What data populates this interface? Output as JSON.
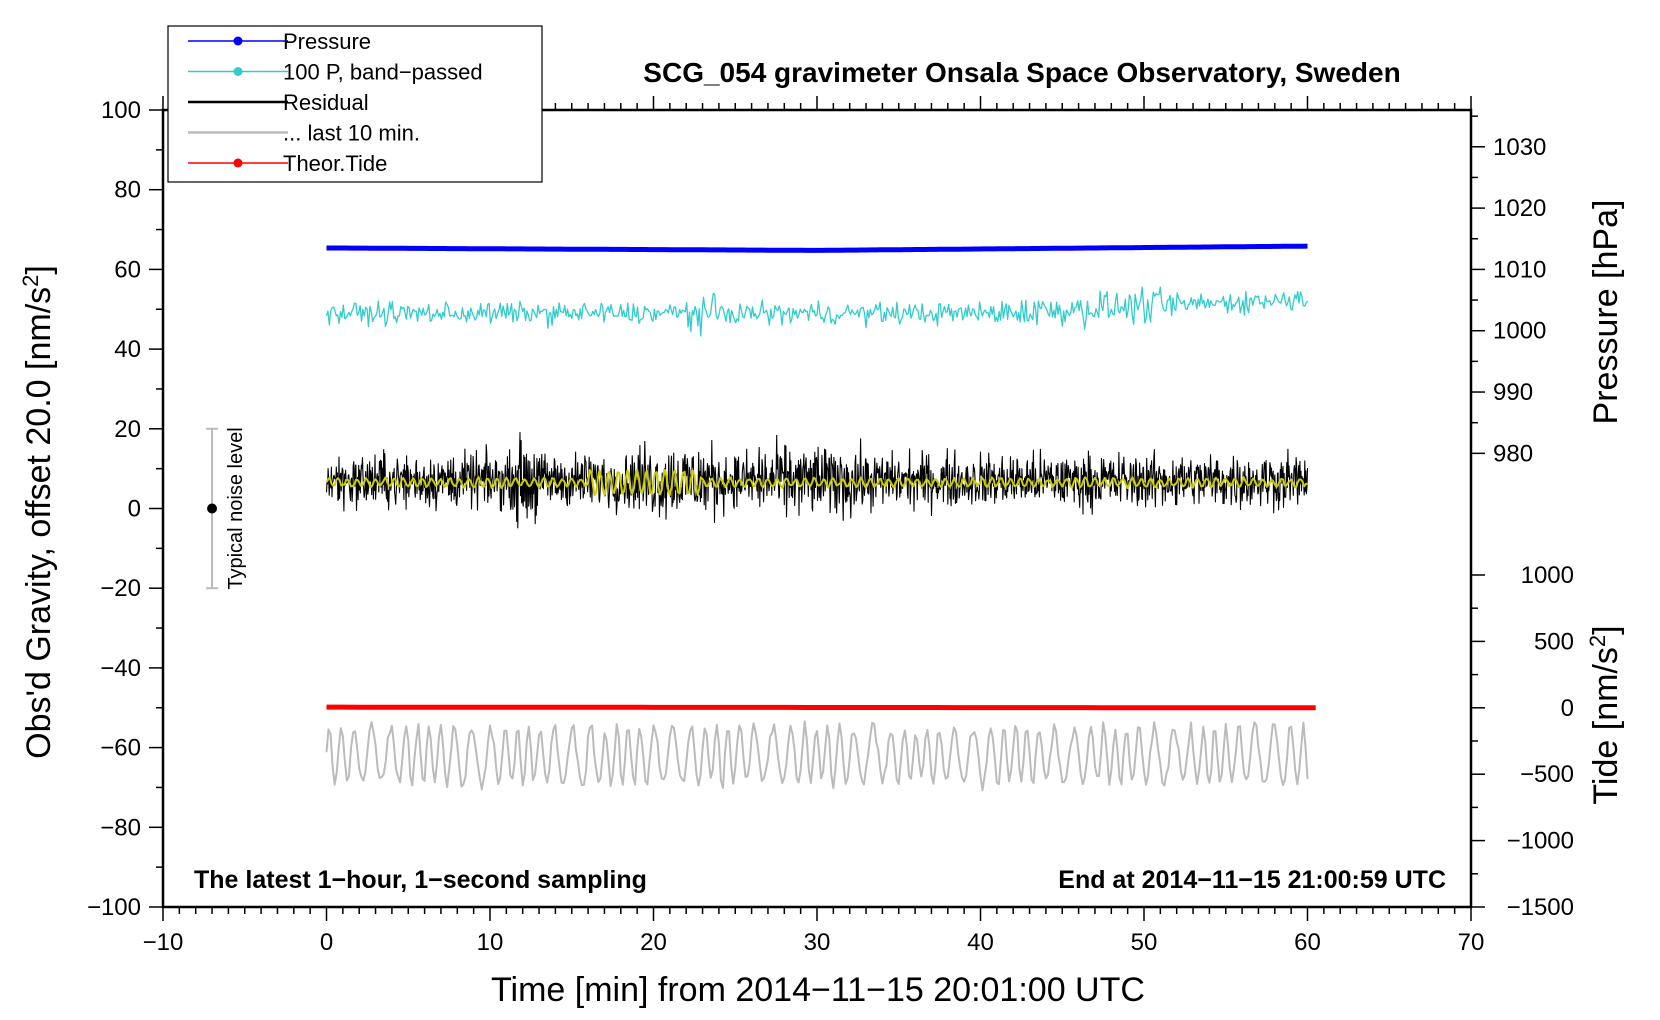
{
  "chart_data": {
    "type": "line",
    "title": "SCG_054 gravimeter Onsala Space Observatory, Sweden",
    "xlabel": "Time [min] from 2014−11−15 20:01:00 UTC",
    "ylabel_left": "Obs'd Gravity, offset 20.0 [nm/s",
    "ylabel_left_sup": "2",
    "ylabel_left_close": "]",
    "ylabel_right_pressure": "Pressure [hPa]",
    "ylabel_right_tide": "Tide [nm/s",
    "ylabel_right_tide_sup": "2",
    "ylabel_right_tide_close": "]",
    "xlim": [
      -10,
      70
    ],
    "ylim_left": [
      -100,
      100
    ],
    "x_ticks": [
      "−10",
      "0",
      "10",
      "20",
      "30",
      "40",
      "50",
      "60",
      "70"
    ],
    "y_left_ticks": [
      "100",
      "80",
      "60",
      "40",
      "20",
      "0",
      "−20",
      "−40",
      "−60",
      "−80",
      "−100"
    ],
    "y_pressure_ticks": [
      "1030",
      "1020",
      "1010",
      "1000",
      "990",
      "980"
    ],
    "y_tide_ticks": [
      "1000",
      "500",
      "0",
      "−500",
      "−1000",
      "−1500"
    ],
    "pressure_range": [
      975,
      1036
    ],
    "tide_range": [
      -1500,
      1000
    ],
    "note_left": "The latest 1−hour, 1−second sampling",
    "note_right": "End at 2014−11−15 21:00:59 UTC",
    "noise_label": "Typical noise level",
    "noise_bar": {
      "x": -7,
      "center": 0,
      "low": -20,
      "high": 20
    },
    "legend": [
      {
        "label": "Pressure",
        "color": "#0000ff",
        "marker": true
      },
      {
        "label": "100 P, band−passed",
        "color": "#33cccc",
        "marker": true
      },
      {
        "label": "Residual",
        "color": "#000000",
        "marker": false
      },
      {
        "label": "... last 10 min.",
        "color": "#bbbbbb",
        "marker": false
      },
      {
        "label": "Theor.Tide",
        "color": "#ff0000",
        "marker": true
      }
    ],
    "series": [
      {
        "name": "Pressure",
        "axis": "pressure",
        "color": "#0000ff",
        "x_range": [
          0,
          60
        ],
        "level_start": 1013.5,
        "level_mid": 1013.1,
        "level_end": 1013.8
      },
      {
        "name": "100 P, band−passed",
        "axis": "left",
        "color": "#33cccc",
        "x_range": [
          0,
          60
        ],
        "level": 49,
        "amplitude": 4
      },
      {
        "name": "Residual",
        "axis": "left",
        "color": "#000000",
        "x_range": [
          0,
          60
        ],
        "level": 7,
        "amplitude": 7
      },
      {
        "name": "... last 10 min.",
        "axis": "left",
        "color": "#bbbbbb",
        "x_range": [
          0,
          60
        ],
        "level": -62,
        "amplitude": 7
      },
      {
        "name": "Theor.Tide",
        "axis": "tide",
        "color": "#ff0000",
        "x_range": [
          0,
          60.5
        ],
        "level_start": 5,
        "level_end": 0
      },
      {
        "name": "smoothed residual",
        "axis": "left",
        "color": "#cccc00",
        "x_range": [
          0,
          60
        ],
        "level": 6.5,
        "amplitude": 1
      }
    ]
  }
}
